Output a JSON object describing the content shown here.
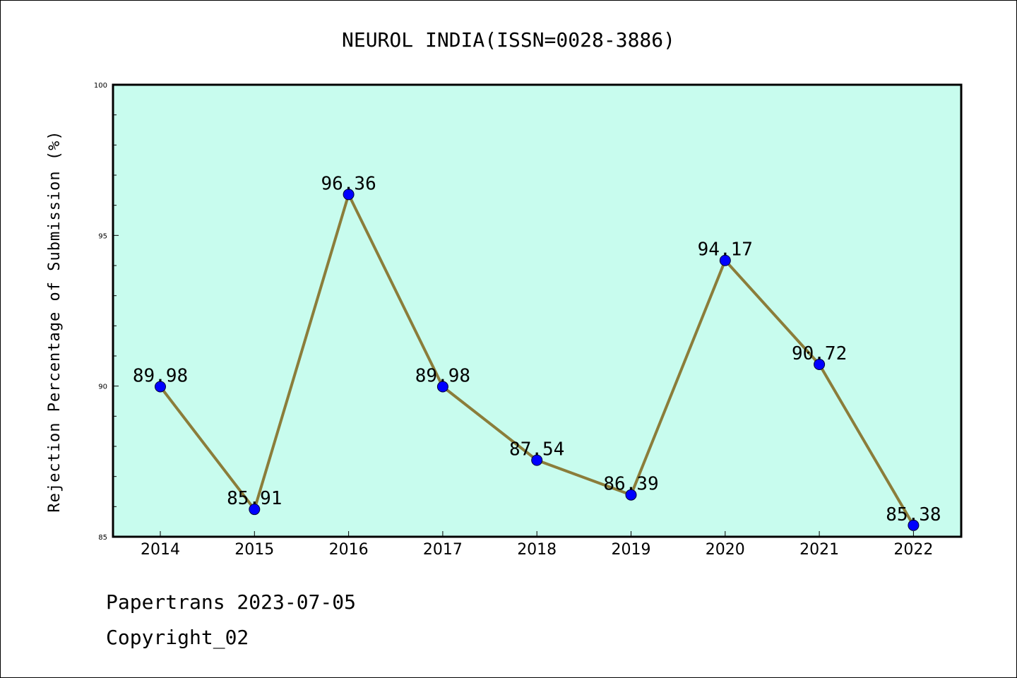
{
  "chart_data": {
    "type": "line",
    "title": "NEUROL INDIA(ISSN=0028-3886)",
    "xlabel": "",
    "ylabel": "Rejection Percentage of Submission (%)",
    "categories": [
      "2014",
      "2015",
      "2016",
      "2017",
      "2018",
      "2019",
      "2020",
      "2021",
      "2022"
    ],
    "series": [
      {
        "values": [
          89.98,
          85.91,
          96.36,
          89.98,
          87.54,
          86.39,
          94.17,
          90.72,
          85.38
        ],
        "data_labels": [
          "89.98",
          "85.91",
          "96.36",
          "89.98",
          "87.54",
          "86.39",
          "94.17",
          "90.72",
          "85.38"
        ]
      }
    ],
    "ylim": [
      85,
      100
    ],
    "y_ticks": [
      85,
      90,
      95,
      100
    ],
    "y_tick_labels": [
      "85",
      "90",
      "95",
      "100"
    ],
    "grid": false,
    "colors": {
      "plot_background": "#c8fcee",
      "line": "#8b7d3a",
      "marker": "#0000ff"
    }
  },
  "footer": {
    "line1": "Papertrans 2023-07-05",
    "line2": "Copyright_02"
  }
}
